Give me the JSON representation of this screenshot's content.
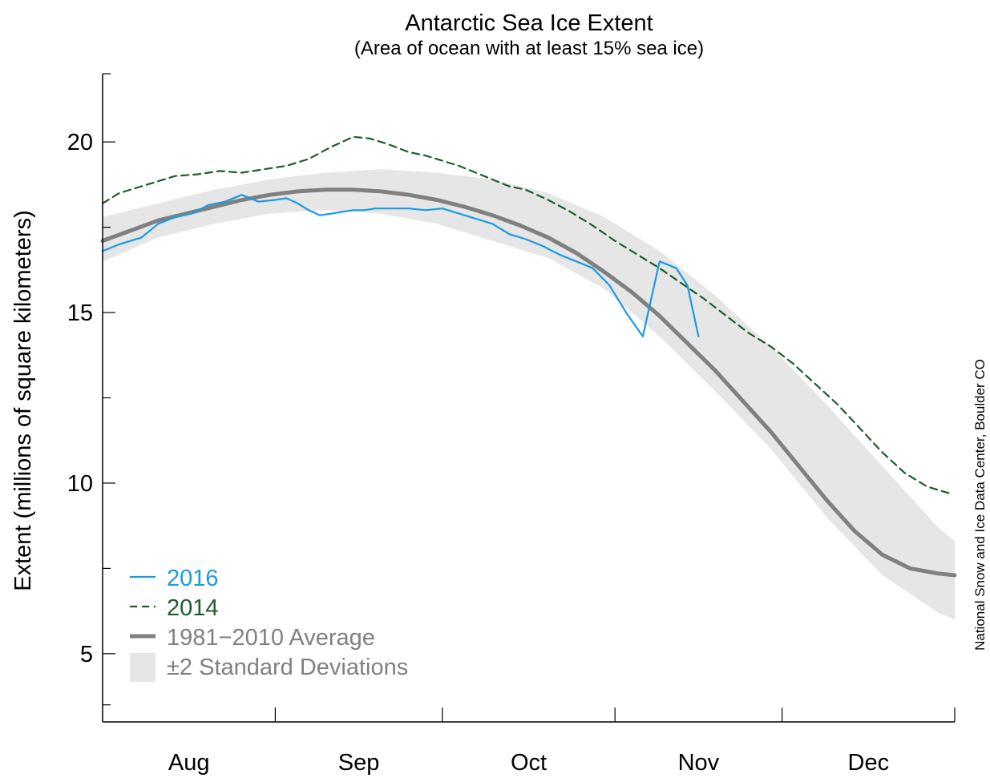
{
  "chart_data": {
    "type": "line",
    "title": "Antarctic Sea Ice Extent",
    "subtitle": "(Area of ocean with at least 15% sea ice)",
    "ylabel": "Extent (millions of square kilometers)",
    "xlabel": "",
    "credit": "National Snow and Ice Data Center, Boulder CO",
    "ylim": [
      3,
      22
    ],
    "xlim": [
      0,
      153
    ],
    "y_ticks": [
      5,
      10,
      15,
      20
    ],
    "x_month_boundaries": [
      31,
      61,
      92,
      122
    ],
    "x_tick_labels": [
      {
        "label": "Aug",
        "x": 15.5
      },
      {
        "label": "Sep",
        "x": 46
      },
      {
        "label": "Oct",
        "x": 76.5
      },
      {
        "label": "Nov",
        "x": 107
      },
      {
        "label": "Dec",
        "x": 137.5
      }
    ],
    "legend_position": "bottom-left",
    "colors": {
      "s2016": "#1a9be0",
      "s2014": "#1a5e2a",
      "average": "#808080",
      "band": "#e6e6e6"
    },
    "series": [
      {
        "name": "2016",
        "style": "solid",
        "x": [
          0,
          3,
          7,
          10,
          13,
          16,
          19,
          22,
          25,
          28,
          31,
          33,
          35,
          37,
          39,
          41,
          43,
          45,
          47,
          49,
          52,
          55,
          58,
          61,
          64,
          67,
          70,
          73,
          76,
          79,
          82,
          85,
          88,
          91,
          94,
          97,
          100,
          103,
          105,
          107
        ],
        "values": [
          16.8,
          17.0,
          17.2,
          17.6,
          17.8,
          17.9,
          18.15,
          18.25,
          18.45,
          18.25,
          18.3,
          18.35,
          18.2,
          18.0,
          17.85,
          17.9,
          17.95,
          18.0,
          18.0,
          18.05,
          18.05,
          18.05,
          18.0,
          18.05,
          17.9,
          17.75,
          17.6,
          17.3,
          17.15,
          16.95,
          16.7,
          16.5,
          16.3,
          15.8,
          15.0,
          14.3,
          16.5,
          16.3,
          15.8,
          14.3
        ]
      },
      {
        "name": "2014",
        "style": "dashed",
        "x": [
          0,
          3,
          7,
          10,
          13,
          17,
          21,
          25,
          29,
          33,
          37,
          41,
          45,
          48,
          51,
          55,
          58,
          61,
          64,
          67,
          70,
          73,
          76,
          80,
          84,
          88,
          92,
          96,
          100,
          104,
          108,
          112,
          116,
          120,
          124,
          128,
          132,
          136,
          140,
          144,
          148,
          152
        ],
        "values": [
          18.2,
          18.5,
          18.7,
          18.85,
          19.0,
          19.05,
          19.15,
          19.1,
          19.2,
          19.3,
          19.5,
          19.85,
          20.15,
          20.1,
          19.95,
          19.7,
          19.6,
          19.45,
          19.3,
          19.1,
          18.9,
          18.7,
          18.6,
          18.3,
          17.95,
          17.55,
          17.1,
          16.7,
          16.3,
          15.85,
          15.4,
          14.9,
          14.4,
          14.0,
          13.5,
          12.9,
          12.3,
          11.6,
          10.9,
          10.3,
          9.9,
          9.7
        ]
      },
      {
        "name": "1981−2010 Average",
        "style": "thick",
        "x": [
          0,
          5,
          10,
          15,
          20,
          25,
          30,
          35,
          40,
          45,
          50,
          55,
          60,
          65,
          70,
          75,
          80,
          85,
          90,
          95,
          100,
          105,
          110,
          115,
          120,
          125,
          130,
          135,
          140,
          145,
          150,
          153
        ],
        "values": [
          17.1,
          17.4,
          17.7,
          17.9,
          18.1,
          18.3,
          18.45,
          18.55,
          18.6,
          18.6,
          18.55,
          18.45,
          18.3,
          18.1,
          17.85,
          17.55,
          17.2,
          16.75,
          16.2,
          15.6,
          14.9,
          14.1,
          13.3,
          12.4,
          11.5,
          10.5,
          9.5,
          8.6,
          7.9,
          7.5,
          7.35,
          7.3
        ]
      }
    ],
    "band": {
      "name": "±2 Standard Deviations",
      "x": [
        0,
        10,
        20,
        30,
        40,
        50,
        60,
        70,
        80,
        90,
        100,
        110,
        120,
        130,
        140,
        150,
        153
      ],
      "upper": [
        17.8,
        18.2,
        18.6,
        18.9,
        19.1,
        19.2,
        19.1,
        18.9,
        18.5,
        17.8,
        16.8,
        15.5,
        14.0,
        12.3,
        10.5,
        8.7,
        8.3
      ],
      "lower": [
        16.5,
        17.2,
        17.6,
        17.9,
        18.0,
        17.9,
        17.6,
        17.1,
        16.6,
        15.7,
        14.3,
        12.7,
        11.0,
        9.0,
        7.3,
        6.2,
        6.0
      ]
    }
  }
}
